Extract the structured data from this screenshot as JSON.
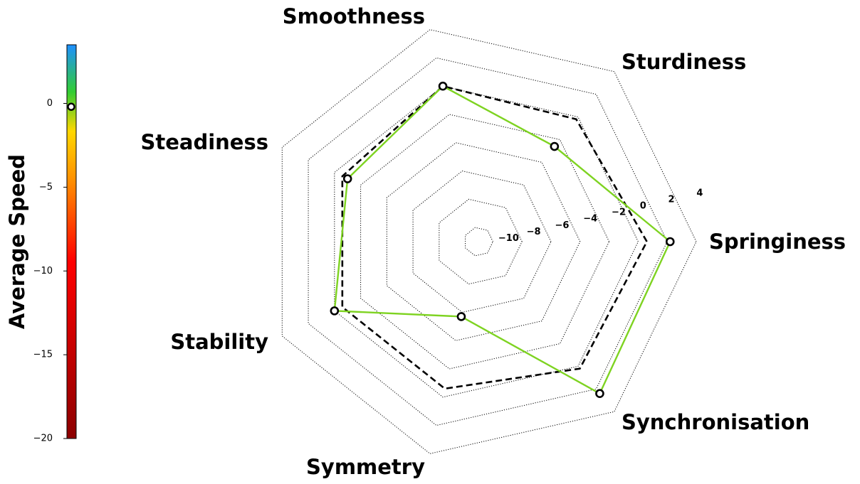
{
  "chart_data": {
    "type": "radar",
    "axes": [
      "Springiness",
      "Sturdiness",
      "Smoothness",
      "Steadiness",
      "Stability",
      "Symmetry",
      "Synchronisation"
    ],
    "rlim": [
      -11,
      4
    ],
    "ticks": [
      -10,
      -8,
      -6,
      -4,
      -2,
      0,
      2,
      4
    ],
    "tick_labels": [
      "−10",
      "−8",
      "−6",
      "−4",
      "−2",
      "0",
      "2",
      "4"
    ],
    "grid": true,
    "series": [
      {
        "style": "dashed",
        "color": "#000000",
        "values": [
          0.6,
          -0.2,
          0.0,
          -0.6,
          -0.6,
          -0.6,
          0.2
        ]
      },
      {
        "style": "solid-with-markers",
        "color": "#7ed321",
        "values": [
          2.2,
          -2.6,
          0.0,
          -1.0,
          -0.0,
          -5.7,
          2.4
        ]
      }
    ],
    "colorbar": {
      "label": "Average Speed",
      "min": -20,
      "max": 3.5,
      "ticks": [
        0,
        -5,
        -10,
        -15,
        -20
      ],
      "tick_labels": [
        "0",
        "−5",
        "−10",
        "−15",
        "−20"
      ],
      "marker_value": -0.2,
      "colors": [
        "#8b0000",
        "#cc0000",
        "#ff0000",
        "#ff8c00",
        "#ffd700",
        "#32cd32",
        "#1e90ff"
      ]
    }
  }
}
